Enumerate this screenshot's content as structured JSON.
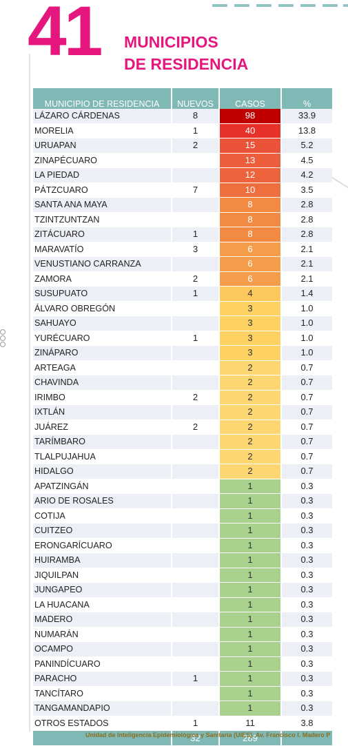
{
  "header": {
    "number": "41",
    "title_line1": "MUNICIPIOS",
    "title_line2": "DE RESIDENCIA"
  },
  "table": {
    "columns": [
      "MUNICIPIO DE RESIDENCIA",
      "NUEVOS",
      "CASOS",
      "%"
    ],
    "rows": [
      {
        "name": "LÁZARO CÁRDENAS",
        "nuevos": "8",
        "casos": "98",
        "pct": "33.9",
        "color": "#c00000"
      },
      {
        "name": "MORELIA",
        "nuevos": "1",
        "casos": "40",
        "pct": "13.8",
        "color": "#e8302a"
      },
      {
        "name": "URUAPAN",
        "nuevos": "2",
        "casos": "15",
        "pct": "5.2",
        "color": "#ea5338"
      },
      {
        "name": "ZINAPÉCUARO",
        "nuevos": "",
        "casos": "13",
        "pct": "4.5",
        "color": "#ec5d3b"
      },
      {
        "name": "LA PIEDAD",
        "nuevos": "",
        "casos": "12",
        "pct": "4.2",
        "color": "#ed633c"
      },
      {
        "name": "PÁTZCUARO",
        "nuevos": "7",
        "casos": "10",
        "pct": "3.5",
        "color": "#ef6e3e"
      },
      {
        "name": "SANTA ANA MAYA",
        "nuevos": "",
        "casos": "8",
        "pct": "2.8",
        "color": "#f28a43"
      },
      {
        "name": "TZINTZUNTZAN",
        "nuevos": "",
        "casos": "8",
        "pct": "2.8",
        "color": "#f28a43"
      },
      {
        "name": "ZITÁCUARO",
        "nuevos": "1",
        "casos": "8",
        "pct": "2.8",
        "color": "#f28a43"
      },
      {
        "name": "MARAVATÍO",
        "nuevos": "3",
        "casos": "6",
        "pct": "2.1",
        "color": "#f49e4c"
      },
      {
        "name": "VENUSTIANO CARRANZA",
        "nuevos": "",
        "casos": "6",
        "pct": "2.1",
        "color": "#f49e4c"
      },
      {
        "name": "ZAMORA",
        "nuevos": "2",
        "casos": "6",
        "pct": "2.1",
        "color": "#f49e4c"
      },
      {
        "name": "SUSUPUATO",
        "nuevos": "1",
        "casos": "4",
        "pct": "1.4",
        "color": "#fcc75c"
      },
      {
        "name": "ÁLVARO OBREGÓN",
        "nuevos": "",
        "casos": "3",
        "pct": "1.0",
        "color": "#fdd263"
      },
      {
        "name": "SAHUAYO",
        "nuevos": "",
        "casos": "3",
        "pct": "1.0",
        "color": "#fdd263"
      },
      {
        "name": "YURÉCUARO",
        "nuevos": "1",
        "casos": "3",
        "pct": "1.0",
        "color": "#fdd263"
      },
      {
        "name": "ZINÁPARO",
        "nuevos": "",
        "casos": "3",
        "pct": "1.0",
        "color": "#fdd263"
      },
      {
        "name": "ARTEAGA",
        "nuevos": "",
        "casos": "2",
        "pct": "0.7",
        "color": "#fcd670"
      },
      {
        "name": "CHAVINDA",
        "nuevos": "",
        "casos": "2",
        "pct": "0.7",
        "color": "#fcd670"
      },
      {
        "name": "IRIMBO",
        "nuevos": "2",
        "casos": "2",
        "pct": "0.7",
        "color": "#fcd670"
      },
      {
        "name": "IXTLÁN",
        "nuevos": "",
        "casos": "2",
        "pct": "0.7",
        "color": "#fcd670"
      },
      {
        "name": "JUÁREZ",
        "nuevos": "2",
        "casos": "2",
        "pct": "0.7",
        "color": "#fcd670"
      },
      {
        "name": "TARÍMBARO",
        "nuevos": "",
        "casos": "2",
        "pct": "0.7",
        "color": "#fcd670"
      },
      {
        "name": "TLALPUJAHUA",
        "nuevos": "",
        "casos": "2",
        "pct": "0.7",
        "color": "#fcd670"
      },
      {
        "name": "HIDALGO",
        "nuevos": "",
        "casos": "2",
        "pct": "0.7",
        "color": "#fcd670"
      },
      {
        "name": "APATZINGÁN",
        "nuevos": "",
        "casos": "1",
        "pct": "0.3",
        "color": "#a9d18e"
      },
      {
        "name": "ARIO DE ROSALES",
        "nuevos": "",
        "casos": "1",
        "pct": "0.3",
        "color": "#a9d18e"
      },
      {
        "name": "COTIJA",
        "nuevos": "",
        "casos": "1",
        "pct": "0.3",
        "color": "#a9d18e"
      },
      {
        "name": "CUITZEO",
        "nuevos": "",
        "casos": "1",
        "pct": "0.3",
        "color": "#a9d18e"
      },
      {
        "name": "ERONGARÍCUARO",
        "nuevos": "",
        "casos": "1",
        "pct": "0.3",
        "color": "#a9d18e"
      },
      {
        "name": "HUIRAMBA",
        "nuevos": "",
        "casos": "1",
        "pct": "0.3",
        "color": "#a9d18e"
      },
      {
        "name": "JIQUILPAN",
        "nuevos": "",
        "casos": "1",
        "pct": "0.3",
        "color": "#a9d18e"
      },
      {
        "name": "JUNGAPEO",
        "nuevos": "",
        "casos": "1",
        "pct": "0.3",
        "color": "#a9d18e"
      },
      {
        "name": "LA HUACANA",
        "nuevos": "",
        "casos": "1",
        "pct": "0.3",
        "color": "#a9d18e"
      },
      {
        "name": "MADERO",
        "nuevos": "",
        "casos": "1",
        "pct": "0.3",
        "color": "#a9d18e"
      },
      {
        "name": "NUMARÁN",
        "nuevos": "",
        "casos": "1",
        "pct": "0.3",
        "color": "#a9d18e"
      },
      {
        "name": "OCAMPO",
        "nuevos": "",
        "casos": "1",
        "pct": "0.3",
        "color": "#a9d18e"
      },
      {
        "name": "PANINDÍCUARO",
        "nuevos": "",
        "casos": "1",
        "pct": "0.3",
        "color": "#a9d18e"
      },
      {
        "name": "PARACHO",
        "nuevos": "1",
        "casos": "1",
        "pct": "0.3",
        "color": "#a9d18e"
      },
      {
        "name": "TANCÍTARO",
        "nuevos": "",
        "casos": "1",
        "pct": "0.3",
        "color": "#a9d18e"
      },
      {
        "name": "TANGAMANDAPIO",
        "nuevos": "",
        "casos": "1",
        "pct": "0.3",
        "color": "#a9d18e"
      },
      {
        "name": "OTROS ESTADOS",
        "nuevos": "1",
        "casos": "11",
        "pct": "3.8",
        "color": ""
      }
    ],
    "totals": {
      "name": "",
      "nuevos": "32",
      "casos": "289",
      "pct": ""
    }
  },
  "footer": {
    "text": "Unidad de Inteligencia Epidemiológica y Sanitaria (UIES). Av. Francisco I. Madero P"
  },
  "colors": {
    "brand_pink": "#e5177e",
    "header_teal": "#7fb8b5",
    "row_stripe": "#edeff7"
  }
}
